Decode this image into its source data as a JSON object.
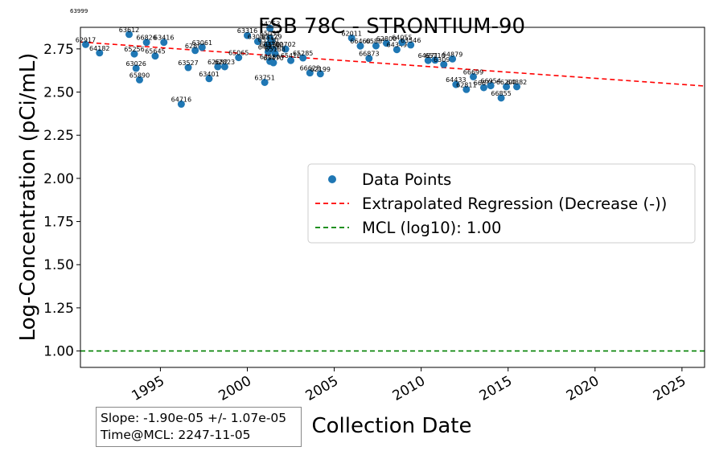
{
  "corner_tag": "63999",
  "stats": {
    "slope_text": "Slope: -1.90e-05 +/- 1.07e-05",
    "time_text": "Time@MCL: 2247-11-05"
  },
  "chart_data": {
    "type": "scatter",
    "title": "FSB 78C - STRONTIUM-90",
    "xlabel": "Collection Date",
    "ylabel": "Log-Concentration (pCi/mL)",
    "xlim": [
      1990.4,
      2026.3
    ],
    "ylim": [
      0.905,
      2.875
    ],
    "x_ticks": [
      1995,
      2000,
      2005,
      2010,
      2015,
      2020,
      2025
    ],
    "y_ticks": [
      1.0,
      1.25,
      1.5,
      1.75,
      2.0,
      2.25,
      2.5,
      2.75
    ],
    "y_tick_labels": [
      "1.00",
      "1.25",
      "1.50",
      "1.75",
      "2.00",
      "2.25",
      "2.50",
      "2.75"
    ],
    "grid": false,
    "legend_position": "center-right",
    "colors": {
      "points": "#1f77b4",
      "regression": "#ff0000",
      "mcl": "#008000"
    },
    "series": [
      {
        "name": "Data Points",
        "type": "scatter",
        "points": [
          {
            "x": 1990.7,
            "y": 2.776,
            "label": "62917"
          },
          {
            "x": 1991.5,
            "y": 2.727,
            "label": "64182"
          },
          {
            "x": 1993.2,
            "y": 2.834,
            "label": "63612"
          },
          {
            "x": 1993.5,
            "y": 2.721,
            "label": "65256"
          },
          {
            "x": 1993.6,
            "y": 2.638,
            "label": "63026"
          },
          {
            "x": 1993.8,
            "y": 2.571,
            "label": "65890"
          },
          {
            "x": 1994.2,
            "y": 2.788,
            "label": "66826"
          },
          {
            "x": 1994.7,
            "y": 2.709,
            "label": "65645"
          },
          {
            "x": 1995.2,
            "y": 2.788,
            "label": "63416"
          },
          {
            "x": 1996.2,
            "y": 2.43,
            "label": "64716"
          },
          {
            "x": 1996.6,
            "y": 2.642,
            "label": "63527"
          },
          {
            "x": 1997.0,
            "y": 2.741,
            "label": "62890"
          },
          {
            "x": 1997.4,
            "y": 2.759,
            "label": "63061"
          },
          {
            "x": 1997.8,
            "y": 2.578,
            "label": "63401"
          },
          {
            "x": 1998.3,
            "y": 2.647,
            "label": "62682"
          },
          {
            "x": 1998.7,
            "y": 2.647,
            "label": "62823"
          },
          {
            "x": 1999.5,
            "y": 2.7,
            "label": "65065"
          },
          {
            "x": 2000.0,
            "y": 2.828,
            "label": "63316"
          },
          {
            "x": 2000.6,
            "y": 2.793,
            "label": "63000"
          },
          {
            "x": 2001.0,
            "y": 2.556,
            "label": "63751"
          },
          {
            "x": 2001.3,
            "y": 2.869,
            "label": "64253"
          },
          {
            "x": 2001.3,
            "y": 2.813,
            "label": "65057"
          },
          {
            "x": 2001.4,
            "y": 2.794,
            "label": "63129"
          },
          {
            "x": 2001.2,
            "y": 2.776,
            "label": "65730"
          },
          {
            "x": 2001.3,
            "y": 2.75,
            "label": "63590"
          },
          {
            "x": 2001.5,
            "y": 2.747,
            "label": "63720"
          },
          {
            "x": 2002.2,
            "y": 2.749,
            "label": "62702"
          },
          {
            "x": 2001.2,
            "y": 2.733,
            "label": "64800"
          },
          {
            "x": 2001.6,
            "y": 2.722,
            "label": "65188"
          },
          {
            "x": 2001.3,
            "y": 2.678,
            "label": "63080"
          },
          {
            "x": 2001.5,
            "y": 2.67,
            "label": "63470"
          },
          {
            "x": 2002.5,
            "y": 2.683,
            "label": "65410"
          },
          {
            "x": 2003.2,
            "y": 2.698,
            "label": "65285"
          },
          {
            "x": 2003.6,
            "y": 2.611,
            "label": "66628"
          },
          {
            "x": 2004.2,
            "y": 2.606,
            "label": "62199"
          },
          {
            "x": 2006.0,
            "y": 2.813,
            "label": "62011"
          },
          {
            "x": 2006.5,
            "y": 2.767,
            "label": "66460"
          },
          {
            "x": 2007.0,
            "y": 2.695,
            "label": "66873"
          },
          {
            "x": 2007.4,
            "y": 2.768,
            "label": "65885"
          },
          {
            "x": 2008.0,
            "y": 2.783,
            "label": "62800"
          },
          {
            "x": 2008.6,
            "y": 2.746,
            "label": "64349"
          },
          {
            "x": 2008.9,
            "y": 2.788,
            "label": "64055"
          },
          {
            "x": 2009.4,
            "y": 2.773,
            "label": "63546"
          },
          {
            "x": 2010.4,
            "y": 2.683,
            "label": "64671"
          },
          {
            "x": 2010.8,
            "y": 2.685,
            "label": "65110"
          },
          {
            "x": 2011.3,
            "y": 2.66,
            "label": "63097"
          },
          {
            "x": 2011.8,
            "y": 2.692,
            "label": "64879"
          },
          {
            "x": 2012.0,
            "y": 2.544,
            "label": "64433"
          },
          {
            "x": 2012.6,
            "y": 2.515,
            "label": "62811"
          },
          {
            "x": 2013.0,
            "y": 2.589,
            "label": "66699"
          },
          {
            "x": 2013.6,
            "y": 2.526,
            "label": "66675"
          },
          {
            "x": 2014.0,
            "y": 2.537,
            "label": "66954"
          },
          {
            "x": 2014.6,
            "y": 2.466,
            "label": "66855"
          },
          {
            "x": 2014.9,
            "y": 2.531,
            "label": "66201"
          },
          {
            "x": 2015.5,
            "y": 2.531,
            "label": "64882"
          }
        ]
      },
      {
        "name": "Extrapolated Regression (Decrease (-))",
        "type": "line",
        "style": "dashed",
        "x": [
          1990.4,
          2026.3
        ],
        "y": [
          2.79,
          2.535
        ]
      },
      {
        "name": "MCL (log10): 1.00",
        "type": "hline",
        "style": "dashed",
        "y": 1.0
      }
    ]
  }
}
